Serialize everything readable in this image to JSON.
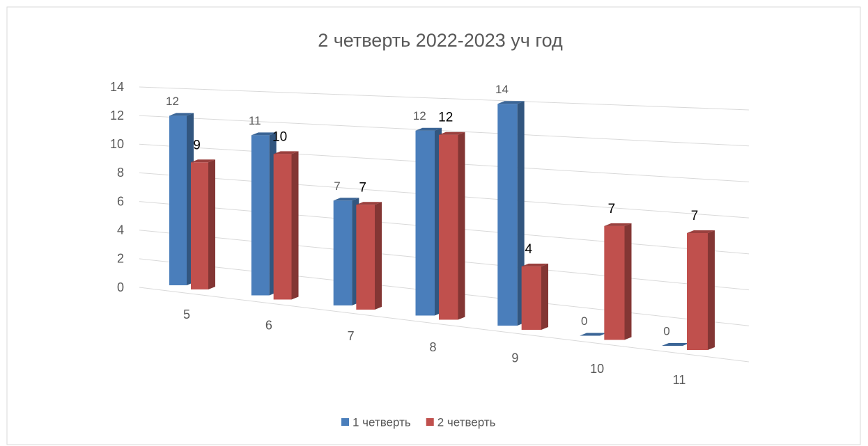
{
  "chart_data": {
    "type": "bar3d",
    "title": "2 четверть 2022-2023 уч год",
    "categories": [
      "5",
      "6",
      "7",
      "8",
      "9",
      "10",
      "11"
    ],
    "series": [
      {
        "name": "1 четверть",
        "color": "#4a7ebb",
        "values": [
          12,
          11,
          7,
          12,
          14,
          0,
          0
        ]
      },
      {
        "name": "2 четверть",
        "color": "#c0504d",
        "values": [
          9,
          10,
          7,
          12,
          4,
          7,
          7
        ]
      }
    ],
    "ylim": [
      0,
      14
    ],
    "yticks": [
      0,
      2,
      4,
      6,
      8,
      10,
      12,
      14
    ],
    "grid": true,
    "legend": "bottom"
  }
}
